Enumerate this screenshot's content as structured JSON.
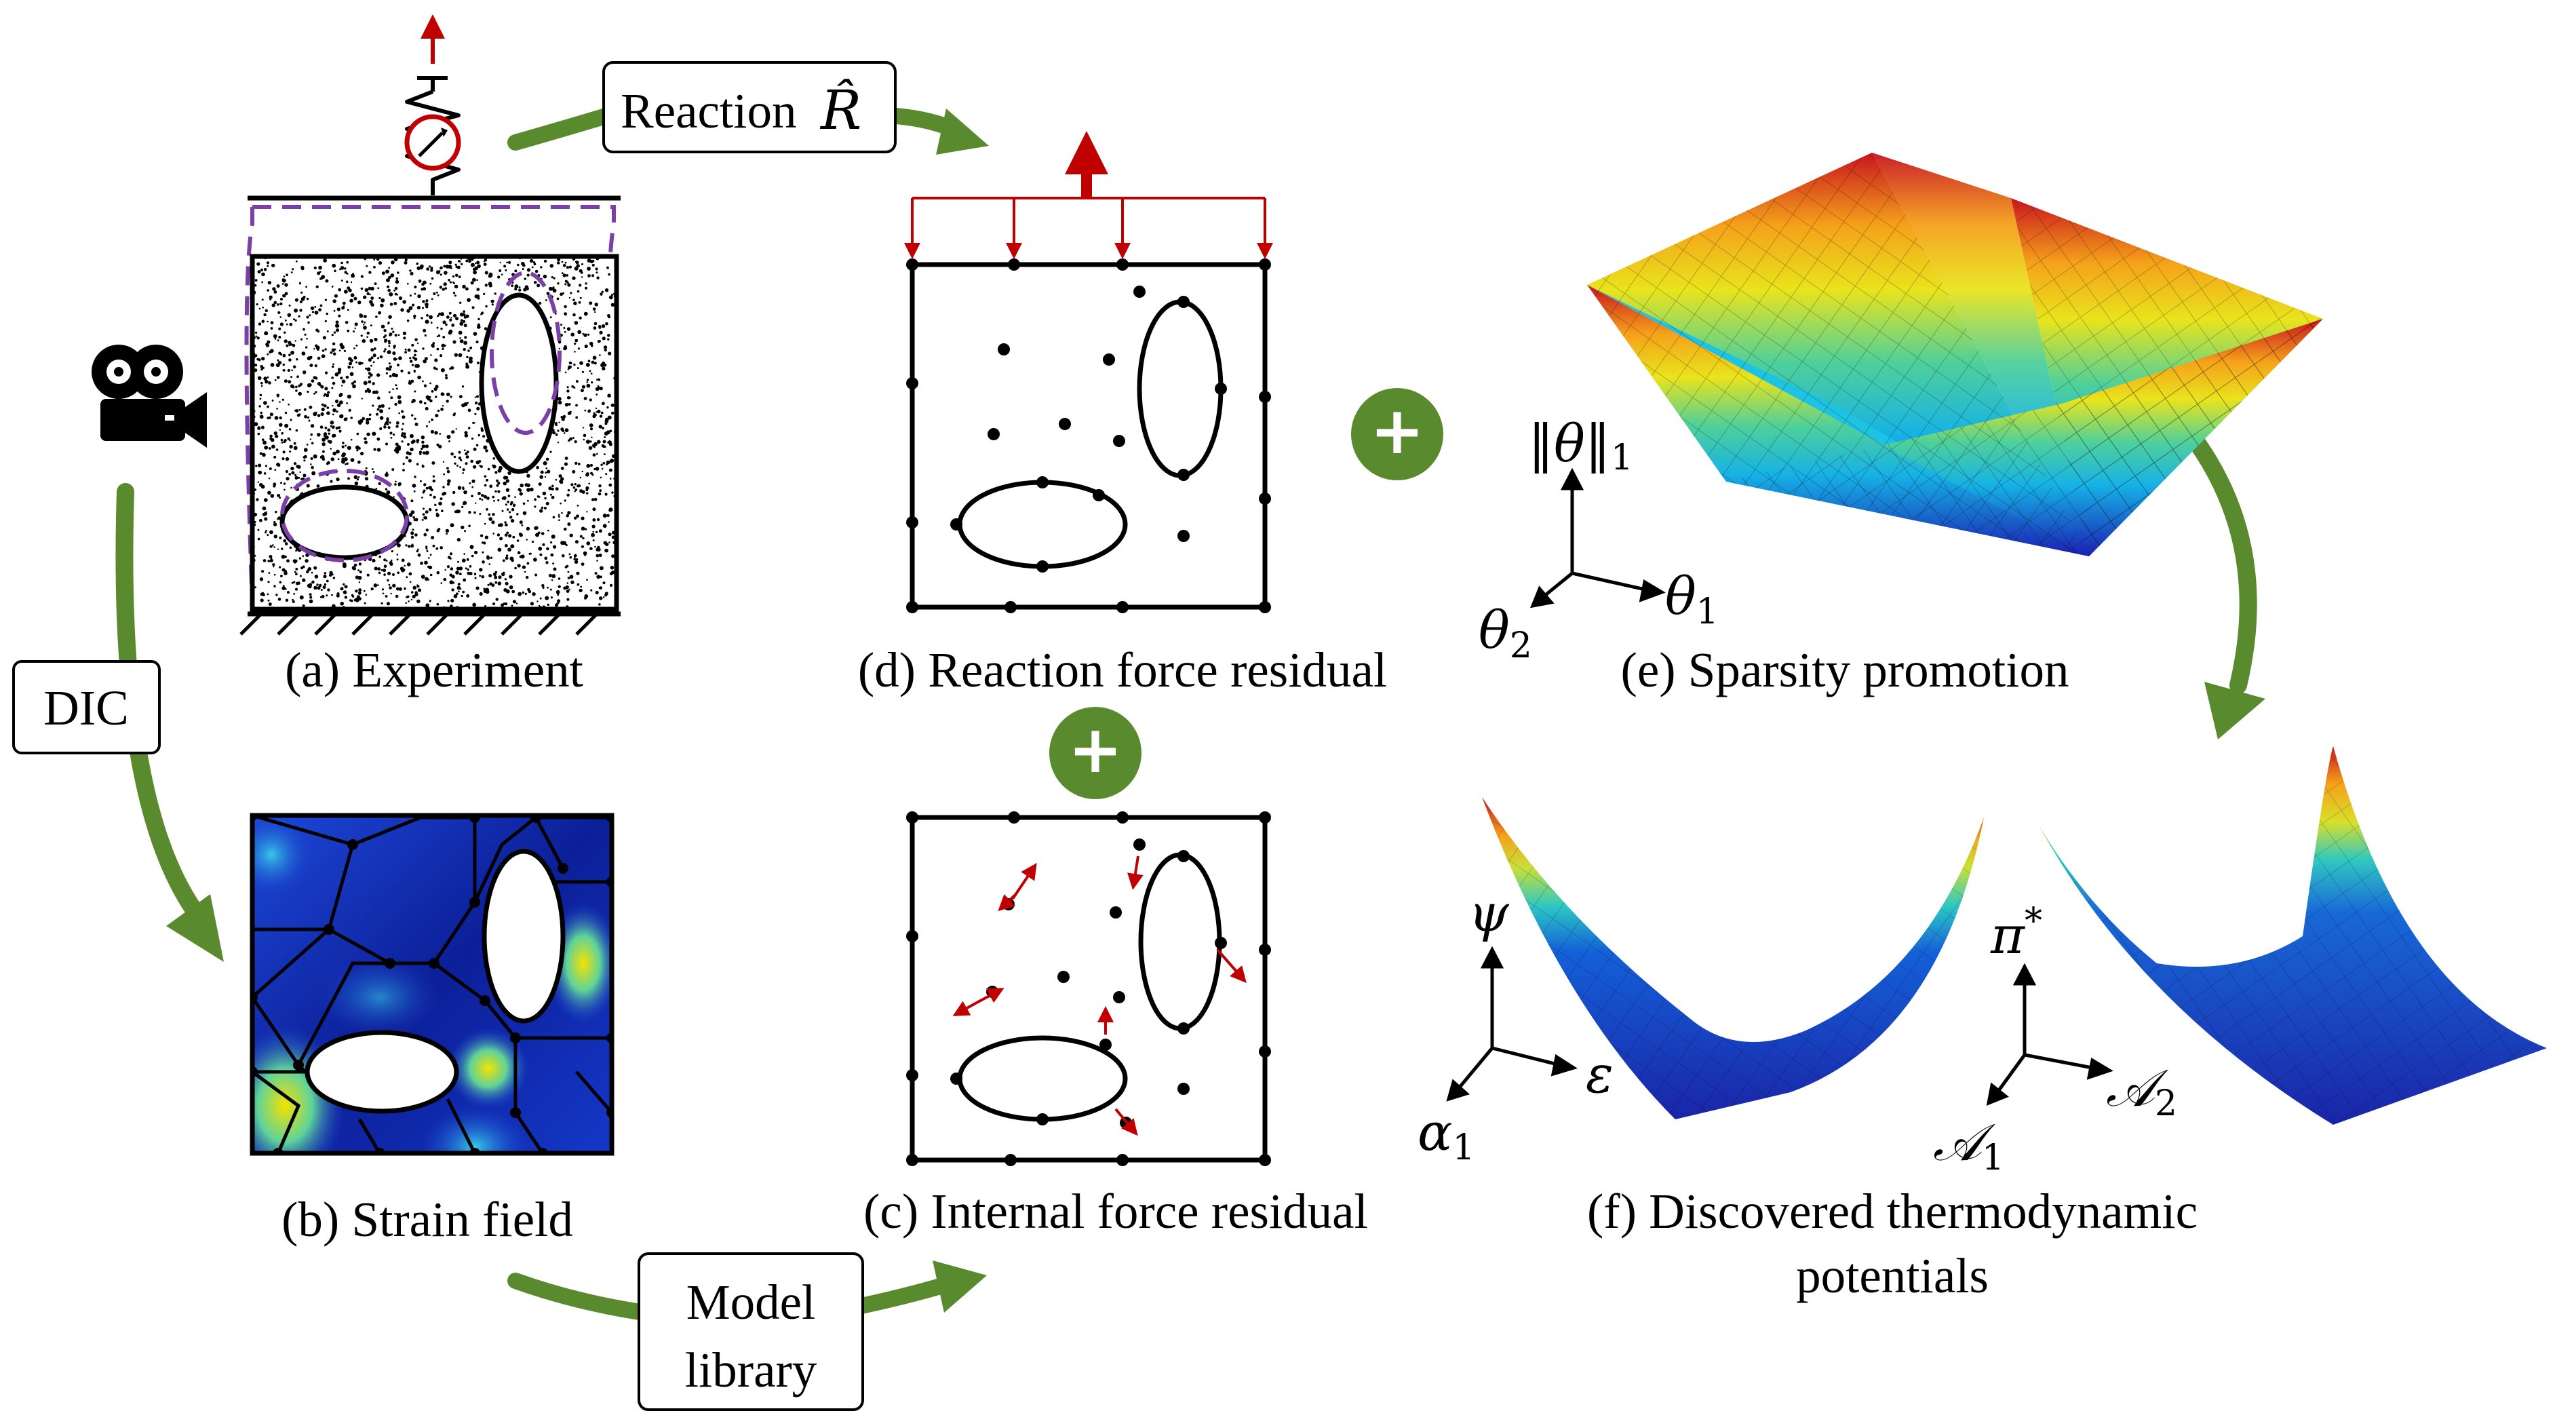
{
  "labels": {
    "reaction_box": "Reaction",
    "reaction_symbol": "R̂",
    "dic_box": "DIC",
    "model_box_line1": "Model",
    "model_box_line2": "library",
    "plus": "+"
  },
  "captions": {
    "a": "(a) Experiment",
    "b": "(b) Strain field",
    "c": "(c) Internal force residual",
    "d": "(d) Reaction force residual",
    "e": "(e) Sparsity promotion",
    "f_line1": "(f) Discovered thermodynamic",
    "f_line2": "potentials"
  },
  "axes": {
    "e": {
      "up": "‖θ‖",
      "up_sub": "1",
      "right": "θ",
      "right_sub": "1",
      "left": "θ",
      "left_sub": "2"
    },
    "f1": {
      "up": "ψ",
      "right": "ε",
      "left": "α",
      "left_sub": "1"
    },
    "f2": {
      "up": "π",
      "up_sup": "*",
      "right": "𝒜",
      "right_sub": "2",
      "left": "𝒜",
      "left_sub": "1"
    }
  },
  "icons": [
    "camera-icon",
    "load-cell-icon",
    "spring-icon",
    "plus-icon"
  ],
  "colors": {
    "arrow_green": "#5a8a2e",
    "force_red": "#c00000",
    "deformed_purple": "#7b3fa8",
    "line": "#000000",
    "strain_low": "#0a1a8c",
    "strain_high": "#f0e000"
  }
}
